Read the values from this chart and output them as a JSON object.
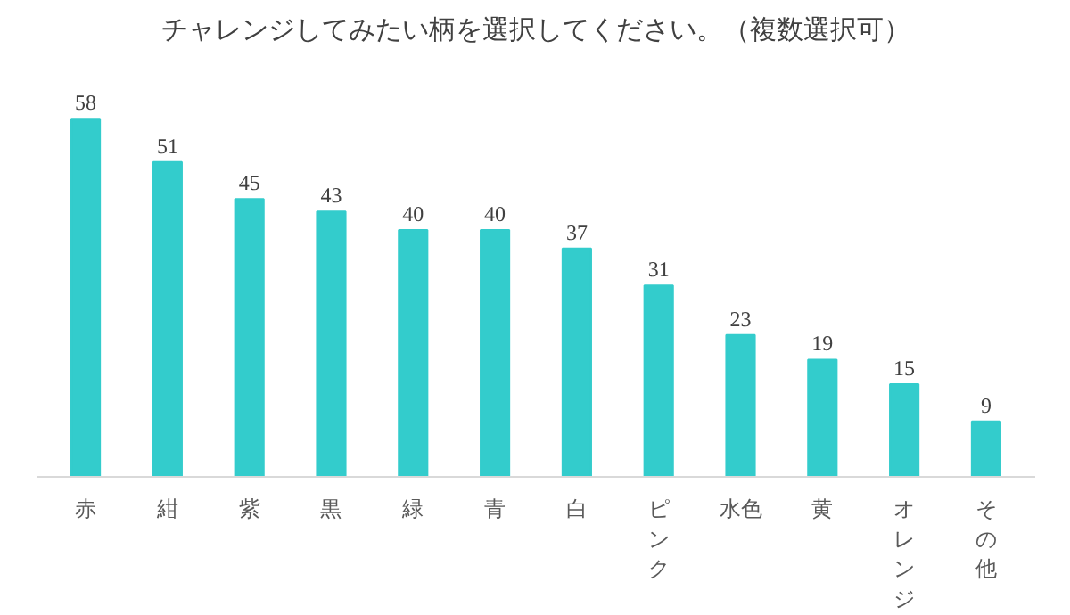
{
  "chart_data": {
    "type": "bar",
    "title": "チャレンジしてみたい柄を選択してください。（複数選択可）",
    "categories": [
      "赤",
      "紺",
      "紫",
      "黒",
      "緑",
      "青",
      "白",
      "ピンク",
      "水色",
      "黄",
      "オレンジ",
      "その他"
    ],
    "values": [
      58,
      51,
      45,
      43,
      40,
      40,
      37,
      31,
      23,
      19,
      15,
      9
    ],
    "color": "#33cccc",
    "data_labels": true,
    "grid": false
  }
}
